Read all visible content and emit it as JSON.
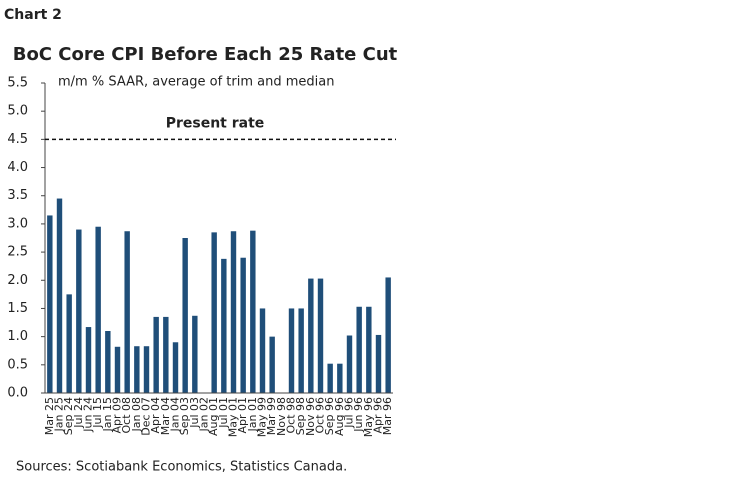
{
  "chart_data": {
    "type": "bar",
    "label": "Chart 2",
    "title": "BoC Core CPI Before Each 25 Rate Cut",
    "subtitle": "m/m % SAAR, average of trim and median",
    "source": "Sources: Scotiabank Economics, Statistics Canada.",
    "categories": [
      "Mar 25",
      "Jan 25",
      "Sep 24",
      "Jul 24",
      "Jun 24",
      "Jul 15",
      "Jan 15",
      "Apr 09",
      "Oct 08",
      "Jan 08",
      "Dec 07",
      "Apr 04",
      "Mar 04",
      "Jan 04",
      "Sep 03",
      "Jul 03",
      "Jan 02",
      "Aug 01",
      "Jul 01",
      "May 01",
      "Apr 01",
      "Jan 01",
      "May 99",
      "Mar 99",
      "Nov 98",
      "Oct 98",
      "Sep 98",
      "Nov 96",
      "Oct 96",
      "Sep 96",
      "Aug 96",
      "Jul 96",
      "Jun 96",
      "May 96",
      "Apr 96",
      "Mar 96"
    ],
    "values": [
      3.15,
      3.45,
      1.75,
      2.9,
      1.17,
      2.95,
      1.1,
      0.82,
      2.87,
      0.83,
      0.83,
      1.35,
      1.35,
      0.9,
      2.75,
      1.37,
      null,
      2.85,
      2.38,
      2.87,
      2.4,
      2.88,
      1.5,
      1.0,
      null,
      1.5,
      1.5,
      2.03,
      2.03,
      0.52,
      0.52,
      1.02,
      1.53,
      1.53,
      1.03,
      2.05
    ],
    "color": "#1f4e79",
    "ylim": [
      0,
      5.5
    ],
    "yticks": [
      {
        "value": 0,
        "label": "0.0"
      },
      {
        "value": 0.5,
        "label": "0.5"
      },
      {
        "value": 1,
        "label": "1.0"
      },
      {
        "value": 1.5,
        "label": "1.5"
      },
      {
        "value": 2,
        "label": "2.0"
      },
      {
        "value": 2.5,
        "label": "2.5"
      },
      {
        "value": 3,
        "label": "3.0"
      },
      {
        "value": 3.5,
        "label": "3.5"
      },
      {
        "value": 4,
        "label": "4.0"
      },
      {
        "value": 4.5,
        "label": "4.5"
      },
      {
        "value": 5,
        "label": "5.0"
      },
      {
        "value": 5.5,
        "label": "5.5"
      }
    ],
    "reference_line": {
      "value": 4.5,
      "label": "Present rate"
    }
  }
}
